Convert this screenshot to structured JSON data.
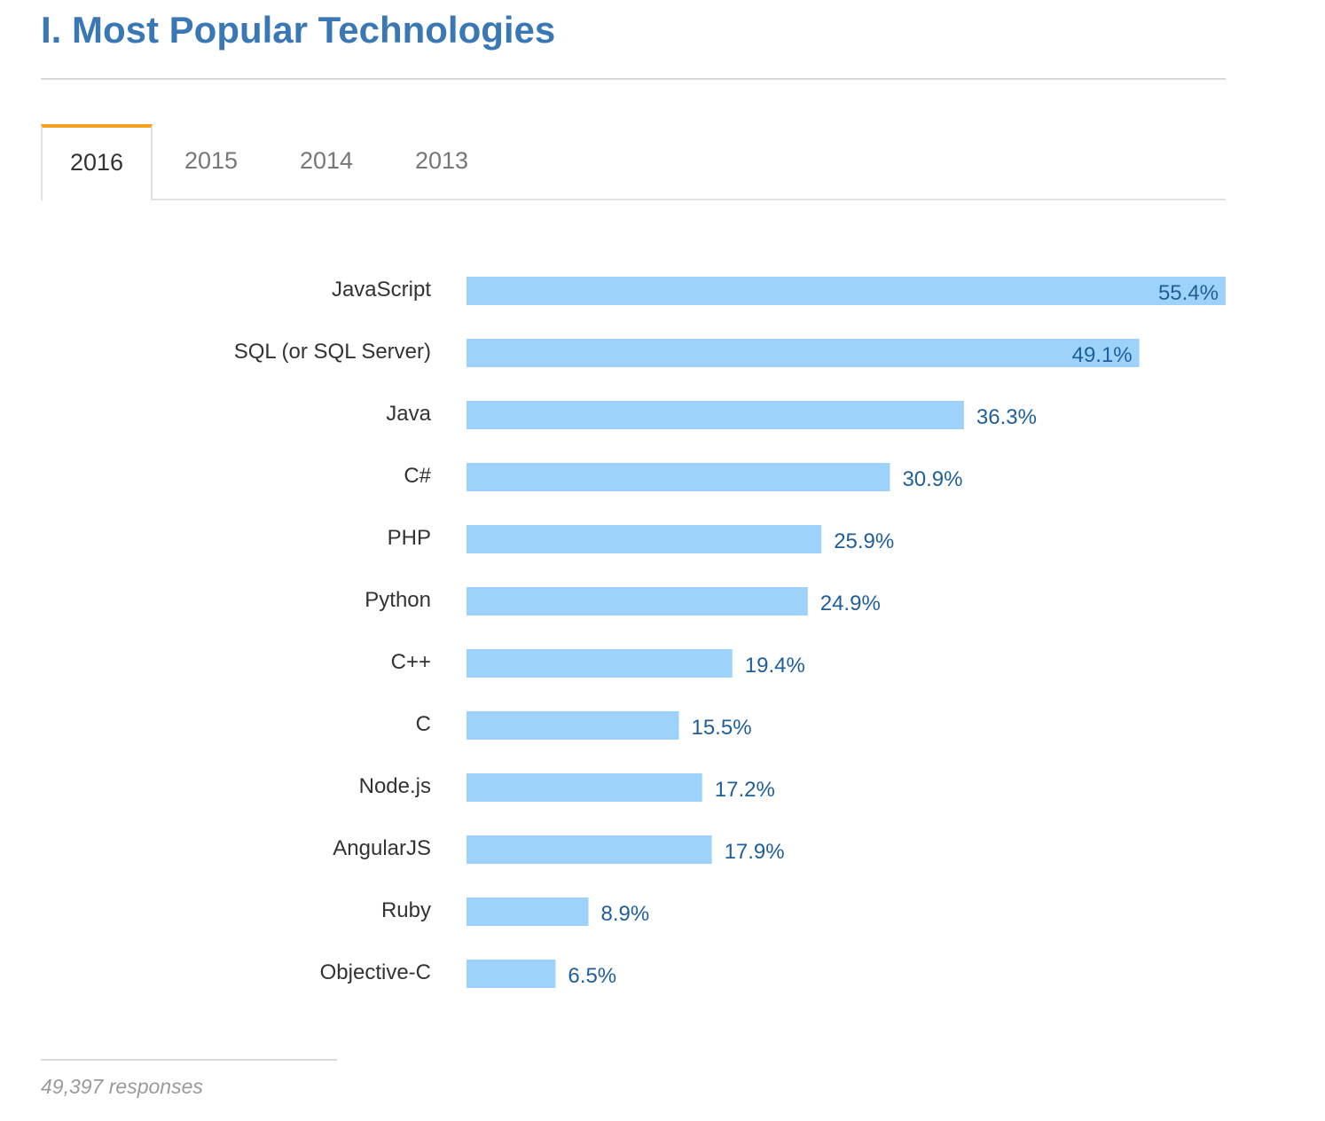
{
  "header": {
    "title": "I. Most Popular Technologies"
  },
  "tabs": [
    {
      "label": "2016",
      "active": true
    },
    {
      "label": "2015",
      "active": false
    },
    {
      "label": "2014",
      "active": false
    },
    {
      "label": "2013",
      "active": false
    }
  ],
  "colors": {
    "title": "#3a78b5",
    "bar": "#9dd3fb",
    "value_label": "#1f5f99",
    "category_label": "#333333",
    "tab_accent": "#f5a01e"
  },
  "chart_data": {
    "type": "bar",
    "orientation": "horizontal",
    "title": "",
    "xlabel": "",
    "ylabel": "",
    "grid": false,
    "xlim": [
      0,
      55.4
    ],
    "categories": [
      "JavaScript",
      "SQL (or SQL Server)",
      "Java",
      "C#",
      "PHP",
      "Python",
      "C++",
      "C",
      "Node.js",
      "AngularJS",
      "Ruby",
      "Objective-C"
    ],
    "values": [
      55.4,
      49.1,
      36.3,
      30.9,
      25.9,
      24.9,
      19.4,
      15.5,
      17.2,
      17.9,
      8.9,
      6.5
    ],
    "value_labels": [
      "55.4%",
      "49.1%",
      "36.3%",
      "30.9%",
      "25.9%",
      "24.9%",
      "19.4%",
      "15.5%",
      "17.2%",
      "17.9%",
      "8.9%",
      "6.5%"
    ]
  },
  "footer": {
    "responses": "49,397 responses"
  }
}
